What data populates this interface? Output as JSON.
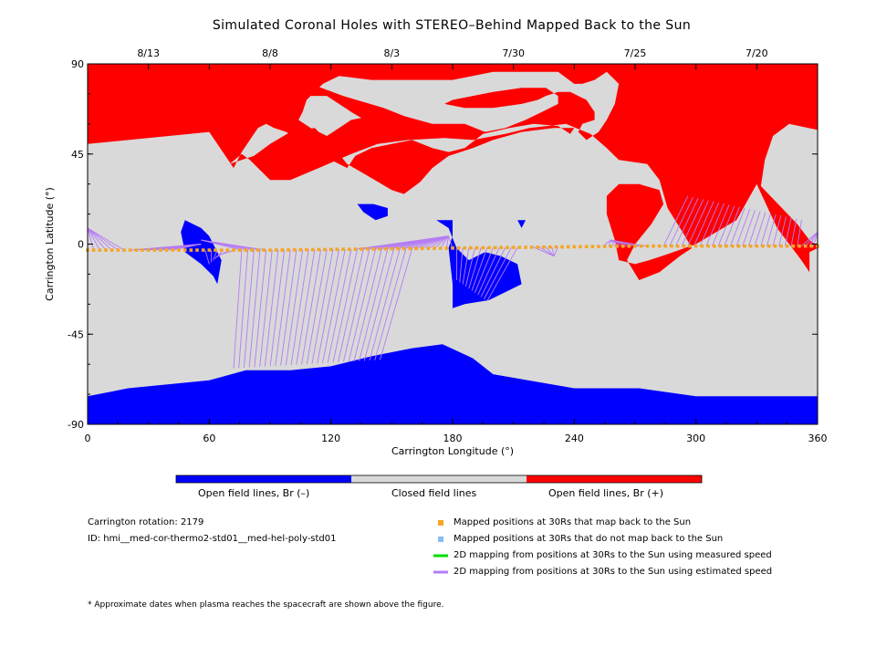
{
  "figure": {
    "title": "Simulated Coronal Holes with STEREO–Behind Mapped Back to the Sun",
    "carrington_rotation_label": "Carrington rotation: 2179",
    "id_label": "ID: hmi__med-cor-thermo2-std01__med-hel-poly-std01",
    "footnote": "* Approximate dates when plasma reaches the spacecraft are shown above the figure."
  },
  "colorbar": {
    "segments": [
      {
        "label": "Open field lines, Br (–)",
        "color": "#0000ff"
      },
      {
        "label": "Closed field lines",
        "color": "#d9d9d9"
      },
      {
        "label": "Open field lines, Br (+)",
        "color": "#ff0000"
      }
    ]
  },
  "legend": {
    "items": [
      {
        "label": "Mapped positions at 30Rs that map back to the Sun",
        "color": "#f5a623",
        "icon": "square-marker"
      },
      {
        "label": "Mapped positions at 30Rs that do not map back to the Sun",
        "color": "#87bdf0",
        "icon": "square-marker"
      },
      {
        "label": "2D mapping from positions at 30Rs to the Sun using measured speed",
        "color": "#00dd00",
        "icon": "line"
      },
      {
        "label": "2D mapping from positions at 30Rs to the Sun using estimated speed",
        "color": "#b57cf5",
        "icon": "line"
      }
    ]
  },
  "chart_data": {
    "type": "map",
    "title": "Simulated Coronal Holes with STEREO–Behind Mapped Back to the Sun",
    "xlabel": "Carrington Longitude (°)",
    "ylabel": "Carrington Latitude (°)",
    "xlim": [
      0,
      360
    ],
    "ylim": [
      -90,
      90
    ],
    "x_ticks": [
      0,
      60,
      120,
      180,
      240,
      300,
      360
    ],
    "y_ticks": [
      -90,
      -45,
      0,
      45,
      90
    ],
    "top_axis_dates": [
      {
        "label": "8/13",
        "lon": 30
      },
      {
        "label": "8/8",
        "lon": 90
      },
      {
        "label": "8/3",
        "lon": 150
      },
      {
        "label": "7/30",
        "lon": 210
      },
      {
        "label": "7/25",
        "lon": 270
      },
      {
        "label": "7/20",
        "lon": 330
      }
    ],
    "colors": {
      "negative_open": "#0000ff",
      "closed": "#d9d9d9",
      "positive_open": "#ff0000",
      "trajectory_point": "#f5a623",
      "mapping_line": "#b57cf5"
    },
    "regions": [
      {
        "polarity": "positive",
        "polygon": [
          [
            0,
            90
          ],
          [
            360,
            90
          ],
          [
            360,
            57
          ],
          [
            346,
            60
          ],
          [
            338,
            54
          ],
          [
            334,
            42
          ],
          [
            332,
            29
          ],
          [
            350,
            10
          ],
          [
            356,
            2
          ],
          [
            360,
            -1
          ],
          [
            360,
            -2
          ],
          [
            356,
            -4
          ],
          [
            356,
            -14
          ],
          [
            352,
            -8
          ],
          [
            340,
            8
          ],
          [
            330,
            30
          ],
          [
            320,
            12
          ],
          [
            300,
            0
          ],
          [
            286,
            -5
          ],
          [
            277,
            -8
          ],
          [
            270,
            -10
          ],
          [
            262,
            -8
          ],
          [
            260,
            2
          ],
          [
            256,
            15
          ],
          [
            256,
            24
          ],
          [
            262,
            30
          ],
          [
            272,
            30
          ],
          [
            282,
            27
          ],
          [
            284,
            20
          ],
          [
            278,
            10
          ],
          [
            270,
            0
          ],
          [
            266,
            -8
          ],
          [
            272,
            -18
          ],
          [
            282,
            -14
          ],
          [
            292,
            -6
          ],
          [
            298,
            -2
          ],
          [
            294,
            5
          ],
          [
            286,
            18
          ],
          [
            282,
            32
          ],
          [
            276,
            40
          ],
          [
            262,
            42
          ],
          [
            256,
            48
          ],
          [
            248,
            55
          ],
          [
            236,
            60
          ],
          [
            218,
            58
          ],
          [
            206,
            55
          ],
          [
            190,
            52
          ],
          [
            176,
            53
          ],
          [
            158,
            52
          ],
          [
            143,
            50
          ],
          [
            130,
            45
          ],
          [
            114,
            38
          ],
          [
            100,
            32
          ],
          [
            90,
            32
          ],
          [
            80,
            42
          ],
          [
            76,
            45
          ],
          [
            70,
            40
          ],
          [
            76,
            42
          ],
          [
            82,
            44
          ],
          [
            90,
            50
          ],
          [
            100,
            56
          ],
          [
            112,
            58
          ],
          [
            120,
            50
          ],
          [
            128,
            40
          ],
          [
            140,
            33
          ],
          [
            150,
            27
          ],
          [
            156,
            25
          ],
          [
            164,
            31
          ],
          [
            170,
            38
          ],
          [
            178,
            44
          ],
          [
            190,
            48
          ],
          [
            200,
            52
          ],
          [
            214,
            56
          ],
          [
            230,
            58
          ],
          [
            240,
            58
          ],
          [
            238,
            55
          ],
          [
            232,
            59
          ],
          [
            220,
            60
          ],
          [
            208,
            58
          ],
          [
            195,
            55
          ],
          [
            186,
            48
          ],
          [
            178,
            46
          ],
          [
            170,
            48
          ],
          [
            160,
            52
          ],
          [
            150,
            56
          ],
          [
            140,
            60
          ],
          [
            130,
            66
          ],
          [
            118,
            74
          ],
          [
            104,
            74
          ],
          [
            98,
            80
          ],
          [
            100,
            82
          ],
          [
            110,
            80
          ],
          [
            126,
            74
          ],
          [
            146,
            68
          ],
          [
            156,
            64
          ],
          [
            170,
            60
          ],
          [
            186,
            60
          ],
          [
            196,
            56
          ],
          [
            206,
            58
          ],
          [
            216,
            62
          ],
          [
            224,
            66
          ],
          [
            232,
            70
          ],
          [
            232,
            74
          ],
          [
            226,
            78
          ],
          [
            214,
            78
          ],
          [
            200,
            76
          ],
          [
            190,
            74
          ],
          [
            180,
            72
          ],
          [
            176,
            70
          ],
          [
            186,
            68
          ],
          [
            200,
            68
          ],
          [
            214,
            70
          ],
          [
            222,
            72
          ],
          [
            226,
            74
          ],
          [
            232,
            76
          ],
          [
            238,
            76
          ],
          [
            246,
            72
          ],
          [
            250,
            66
          ],
          [
            250,
            62
          ],
          [
            244,
            60
          ],
          [
            242,
            56
          ],
          [
            246,
            52
          ],
          [
            252,
            56
          ],
          [
            256,
            62
          ],
          [
            260,
            70
          ],
          [
            262,
            80
          ],
          [
            256,
            86
          ],
          [
            250,
            82
          ],
          [
            244,
            80
          ],
          [
            240,
            80
          ],
          [
            232,
            86
          ],
          [
            226,
            86
          ],
          [
            214,
            86
          ],
          [
            200,
            86
          ],
          [
            180,
            82
          ],
          [
            158,
            82
          ],
          [
            140,
            82
          ],
          [
            124,
            84
          ],
          [
            116,
            80
          ],
          [
            112,
            76
          ],
          [
            108,
            72
          ],
          [
            106,
            66
          ],
          [
            104,
            62
          ],
          [
            110,
            58
          ],
          [
            118,
            54
          ],
          [
            124,
            58
          ],
          [
            130,
            62
          ],
          [
            140,
            64
          ],
          [
            150,
            62
          ],
          [
            160,
            60
          ],
          [
            166,
            56
          ],
          [
            160,
            52
          ],
          [
            150,
            50
          ],
          [
            140,
            48
          ],
          [
            132,
            44
          ],
          [
            128,
            38
          ],
          [
            120,
            42
          ],
          [
            112,
            48
          ],
          [
            104,
            52
          ],
          [
            98,
            56
          ],
          [
            92,
            58
          ],
          [
            88,
            60
          ],
          [
            84,
            58
          ],
          [
            80,
            52
          ],
          [
            76,
            46
          ],
          [
            72,
            38
          ],
          [
            60,
            56
          ],
          [
            0,
            50
          ]
        ]
      },
      {
        "polarity": "negative",
        "polygon": [
          [
            0,
            -90
          ],
          [
            360,
            -90
          ],
          [
            360,
            -76
          ],
          [
            340,
            -76
          ],
          [
            300,
            -76
          ],
          [
            272,
            -72
          ],
          [
            240,
            -72
          ],
          [
            200,
            -65
          ],
          [
            190,
            -57
          ],
          [
            175,
            -50
          ],
          [
            160,
            -52
          ],
          [
            140,
            -56
          ],
          [
            120,
            -61
          ],
          [
            100,
            -63
          ],
          [
            78,
            -63
          ],
          [
            60,
            -68
          ],
          [
            40,
            -70
          ],
          [
            20,
            -72
          ],
          [
            0,
            -76
          ]
        ]
      },
      {
        "polarity": "negative",
        "polygon": [
          [
            48,
            12
          ],
          [
            56,
            8
          ],
          [
            60,
            4
          ],
          [
            66,
            -8
          ],
          [
            64,
            -20
          ],
          [
            62,
            -16
          ],
          [
            56,
            -10
          ],
          [
            48,
            -4
          ],
          [
            46,
            6
          ]
        ]
      },
      {
        "polygon": [
          [
            133,
            20
          ],
          [
            141,
            20
          ],
          [
            148,
            18
          ],
          [
            148,
            14
          ],
          [
            142,
            12
          ],
          [
            136,
            16
          ]
        ],
        "polarity": "negative"
      },
      {
        "polarity": "negative",
        "polygon": [
          [
            172,
            12
          ],
          [
            180,
            12
          ],
          [
            180,
            4
          ],
          [
            178,
            -2
          ],
          [
            180,
            -20
          ],
          [
            180,
            -32
          ],
          [
            186,
            -30
          ],
          [
            198,
            -28
          ],
          [
            214,
            -20
          ],
          [
            212,
            -10
          ],
          [
            204,
            -6
          ],
          [
            196,
            -4
          ],
          [
            188,
            -8
          ],
          [
            182,
            -2
          ],
          [
            178,
            8
          ]
        ]
      },
      {
        "polarity": "negative",
        "polygon": [
          [
            212,
            12
          ],
          [
            216,
            12
          ],
          [
            214,
            8
          ]
        ]
      }
    ],
    "trajectory_latitude": [
      {
        "lon": 0,
        "lat": -3
      },
      {
        "lon": 90,
        "lat": -3
      },
      {
        "lon": 180,
        "lat": -2
      },
      {
        "lon": 270,
        "lat": -1
      },
      {
        "lon": 360,
        "lat": -1
      }
    ],
    "mapping_clusters": [
      {
        "lon_range": [
          0,
          42
        ],
        "target": "fan to western cluster at equator"
      },
      {
        "lon_range": [
          60,
          160
        ],
        "target": "southern polar hole edge"
      },
      {
        "lon_range": [
          160,
          210
        ],
        "target": "equatorial negative hole"
      },
      {
        "lon_range": [
          270,
          360
        ],
        "target": "northern positive hole extensions"
      }
    ]
  }
}
